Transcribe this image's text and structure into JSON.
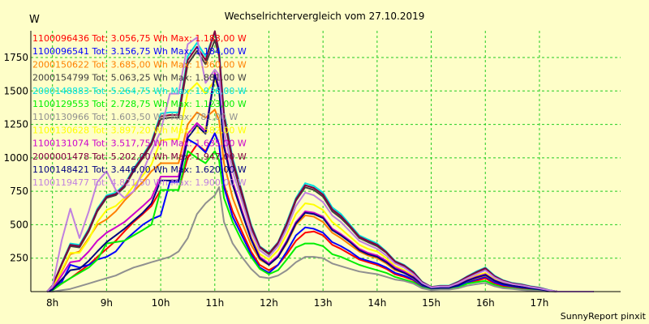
{
  "chart_data": {
    "type": "line",
    "title": "Wechselrichtervergleich vom 27.10.2019",
    "ylabel": "W",
    "credit": "SunnyReport pinxit",
    "ylim": [
      0,
      1950
    ],
    "xlim": [
      7.6,
      18.5
    ],
    "yticks": [
      250,
      500,
      750,
      1000,
      1250,
      1500,
      1750
    ],
    "xticks": [
      {
        "value": 8,
        "label": "8h"
      },
      {
        "value": 9,
        "label": "9h"
      },
      {
        "value": 10,
        "label": "10h"
      },
      {
        "value": 11,
        "label": "11h"
      },
      {
        "value": 12,
        "label": "12h"
      },
      {
        "value": 13,
        "label": "13h"
      },
      {
        "value": 14,
        "label": "14h"
      },
      {
        "value": 15,
        "label": "15h"
      },
      {
        "value": 16,
        "label": "16h"
      },
      {
        "value": 17,
        "label": "17h"
      }
    ],
    "grid": true,
    "legend_position": "top-left",
    "x": [
      7.9,
      8.0,
      8.17,
      8.33,
      8.5,
      8.67,
      8.83,
      9.0,
      9.17,
      9.33,
      9.5,
      9.67,
      9.83,
      10.0,
      10.17,
      10.33,
      10.5,
      10.67,
      10.83,
      11.0,
      11.08,
      11.17,
      11.33,
      11.5,
      11.67,
      11.83,
      12.0,
      12.17,
      12.33,
      12.5,
      12.67,
      12.83,
      13.0,
      13.17,
      13.33,
      13.5,
      13.67,
      13.83,
      14.0,
      14.17,
      14.33,
      14.5,
      14.67,
      14.83,
      15.0,
      15.17,
      15.33,
      15.5,
      15.67,
      15.83,
      16.0,
      16.17,
      16.33,
      16.5,
      16.67,
      16.83,
      17.0,
      17.17,
      17.33,
      17.5,
      17.67,
      17.83,
      18.0
    ],
    "series": [
      {
        "name": "1100096436 Tot: 3.056,75 Wh Max: 1.183,00 W",
        "color": "#ff0000",
        "values": [
          0,
          10,
          60,
          100,
          150,
          200,
          260,
          320,
          380,
          450,
          520,
          580,
          640,
          760,
          760,
          760,
          1000,
          1100,
          1050,
          1183,
          1100,
          800,
          600,
          450,
          300,
          200,
          160,
          200,
          280,
          380,
          440,
          450,
          420,
          350,
          320,
          280,
          240,
          220,
          200,
          170,
          130,
          110,
          85,
          40,
          20,
          25,
          25,
          40,
          70,
          80,
          100,
          60,
          40,
          30,
          20,
          15,
          10,
          5,
          0,
          0,
          0,
          0,
          0
        ]
      },
      {
        "name": "1100096541 Tot: 3.156,75 Wh Max: 1.184,00 W",
        "color": "#0000ff",
        "values": [
          0,
          10,
          70,
          200,
          180,
          200,
          240,
          260,
          300,
          380,
          440,
          500,
          540,
          570,
          820,
          820,
          1140,
          1100,
          1040,
          1184,
          1100,
          780,
          560,
          420,
          280,
          180,
          140,
          200,
          300,
          420,
          480,
          470,
          440,
          370,
          340,
          300,
          250,
          230,
          210,
          180,
          140,
          120,
          90,
          45,
          20,
          25,
          25,
          40,
          70,
          90,
          110,
          70,
          50,
          40,
          30,
          25,
          20,
          10,
          0,
          0,
          0,
          0,
          0
        ]
      },
      {
        "name": "2000150622 Tot: 3.685,00 Wh Max: 1.360,00 W",
        "color": "#ff8000",
        "values": [
          0,
          30,
          150,
          280,
          300,
          400,
          500,
          540,
          600,
          680,
          750,
          820,
          900,
          960,
          960,
          960,
          1250,
          1340,
          1300,
          1360,
          1280,
          960,
          700,
          520,
          350,
          240,
          200,
          260,
          360,
          500,
          570,
          560,
          520,
          440,
          400,
          350,
          300,
          270,
          250,
          210,
          160,
          140,
          100,
          50,
          25,
          30,
          30,
          50,
          80,
          100,
          120,
          80,
          60,
          45,
          35,
          25,
          20,
          10,
          0,
          0,
          0,
          0,
          0
        ]
      },
      {
        "name": "2000154799 Tot: 5.063,25 Wh Max: 1.881,00 W",
        "color": "#404040",
        "values": [
          0,
          40,
          200,
          340,
          330,
          450,
          600,
          700,
          720,
          780,
          900,
          1000,
          1100,
          1290,
          1300,
          1300,
          1700,
          1800,
          1700,
          1881,
          1760,
          1300,
          960,
          720,
          480,
          330,
          280,
          360,
          500,
          680,
          780,
          760,
          710,
          600,
          550,
          480,
          400,
          370,
          340,
          290,
          220,
          190,
          140,
          70,
          35,
          40,
          40,
          70,
          110,
          140,
          170,
          110,
          80,
          60,
          50,
          35,
          25,
          10,
          0,
          0,
          0,
          0,
          0
        ]
      },
      {
        "name": "2000148883 Tot: 5.264,75 Wh Max: 1.936,00 W",
        "color": "#00e0e0",
        "values": [
          0,
          45,
          210,
          360,
          350,
          470,
          620,
          720,
          740,
          800,
          920,
          1020,
          1120,
          1330,
          1340,
          1340,
          1760,
          1860,
          1760,
          1936,
          1800,
          1340,
          1000,
          750,
          500,
          340,
          290,
          370,
          520,
          700,
          810,
          790,
          740,
          630,
          580,
          500,
          420,
          390,
          360,
          300,
          230,
          200,
          150,
          75,
          35,
          45,
          45,
          75,
          115,
          150,
          180,
          120,
          85,
          65,
          55,
          40,
          30,
          12,
          0,
          0,
          0,
          0,
          0
        ]
      },
      {
        "name": "1100129553 Tot: 2.728,75 Wh Max: 1.123,00 W",
        "color": "#00ee00",
        "values": [
          0,
          10,
          60,
          100,
          140,
          180,
          240,
          360,
          370,
          380,
          420,
          460,
          500,
          760,
          760,
          760,
          1050,
          1000,
          960,
          1050,
          980,
          700,
          520,
          380,
          260,
          170,
          130,
          160,
          240,
          330,
          360,
          360,
          340,
          280,
          260,
          230,
          200,
          180,
          160,
          140,
          110,
          90,
          70,
          30,
          15,
          20,
          20,
          30,
          60,
          70,
          80,
          50,
          30,
          25,
          15,
          10,
          8,
          4,
          0,
          0,
          0,
          0,
          0
        ]
      },
      {
        "name": "1100130966 Tot: 1.603,50 Wh Max: 781,00 W",
        "color": "#909090",
        "values": [
          0,
          0,
          10,
          20,
          40,
          60,
          80,
          100,
          120,
          150,
          180,
          200,
          220,
          240,
          260,
          300,
          400,
          580,
          660,
          720,
          781,
          520,
          360,
          260,
          170,
          110,
          100,
          120,
          160,
          220,
          260,
          260,
          250,
          210,
          190,
          170,
          150,
          140,
          130,
          110,
          90,
          80,
          60,
          25,
          10,
          15,
          15,
          25,
          45,
          55,
          65,
          40,
          25,
          20,
          12,
          8,
          5,
          2,
          0,
          0,
          0,
          0,
          0
        ]
      },
      {
        "name": "1100130628 Tot: 3.897,20 Wh Max: 1.582,00 W",
        "color": "#ffff00",
        "values": [
          0,
          30,
          160,
          290,
          290,
          390,
          520,
          610,
          640,
          700,
          790,
          870,
          950,
          1130,
          1140,
          1140,
          1490,
          1560,
          1480,
          1582,
          1520,
          1100,
          810,
          610,
          410,
          280,
          240,
          310,
          430,
          580,
          660,
          650,
          610,
          520,
          470,
          410,
          350,
          320,
          300,
          250,
          190,
          160,
          120,
          60,
          30,
          35,
          35,
          60,
          95,
          120,
          140,
          90,
          65,
          50,
          40,
          30,
          20,
          8,
          0,
          0,
          0,
          0,
          0
        ]
      },
      {
        "name": "1100131074 Tot: 3.517,75 Wh Max: 1.635,00 W",
        "color": "#cc00cc",
        "values": [
          0,
          20,
          120,
          220,
          230,
          300,
          380,
          440,
          480,
          520,
          580,
          640,
          700,
          860,
          860,
          860,
          1180,
          1260,
          1200,
          1635,
          1520,
          1100,
          820,
          610,
          400,
          260,
          210,
          270,
          380,
          520,
          600,
          590,
          560,
          470,
          430,
          380,
          320,
          290,
          270,
          230,
          180,
          150,
          110,
          55,
          25,
          30,
          30,
          50,
          85,
          110,
          130,
          85,
          60,
          45,
          35,
          25,
          18,
          8,
          0,
          0,
          0,
          0,
          0
        ]
      },
      {
        "name": "2000001478 Tot: 5.202,00 Wh Max: 1.947,00 W",
        "color": "#800040",
        "values": [
          0,
          45,
          205,
          350,
          340,
          460,
          610,
          710,
          730,
          790,
          910,
          1010,
          1110,
          1310,
          1320,
          1320,
          1730,
          1830,
          1730,
          1947,
          1780,
          1320,
          980,
          740,
          490,
          335,
          285,
          365,
          510,
          690,
          795,
          775,
          725,
          615,
          565,
          490,
          410,
          380,
          350,
          295,
          225,
          195,
          145,
          72,
          35,
          42,
          42,
          72,
          112,
          145,
          175,
          115,
          82,
          62,
          52,
          38,
          28,
          11,
          0,
          0,
          0,
          0,
          0
        ]
      },
      {
        "name": "1100148421 Tot: 3.446,00 Wh Max: 1.620,00 W",
        "color": "#000080",
        "values": [
          0,
          15,
          90,
          160,
          170,
          230,
          300,
          370,
          420,
          470,
          530,
          590,
          660,
          830,
          830,
          830,
          1150,
          1240,
          1180,
          1620,
          1500,
          1080,
          800,
          590,
          390,
          250,
          200,
          260,
          370,
          510,
          590,
          580,
          550,
          460,
          420,
          370,
          310,
          280,
          260,
          220,
          170,
          140,
          105,
          52,
          24,
          28,
          28,
          48,
          82,
          105,
          125,
          82,
          58,
          44,
          34,
          24,
          17,
          7,
          0,
          0,
          0,
          0,
          0
        ]
      },
      {
        "name": "1100119477 Tot: 4.821,50 Wh Max: 1.900,00 W",
        "color": "#c080e0",
        "values": [
          0,
          40,
          380,
          620,
          400,
          600,
          820,
          900,
          760,
          700,
          750,
          900,
          1050,
          1200,
          1480,
          1480,
          1850,
          1900,
          1560,
          1660,
          1620,
          1200,
          900,
          680,
          450,
          310,
          260,
          340,
          470,
          640,
          740,
          720,
          670,
          570,
          520,
          450,
          380,
          350,
          320,
          270,
          210,
          180,
          130,
          65,
          32,
          38,
          38,
          65,
          100,
          130,
          160,
          105,
          75,
          57,
          47,
          34,
          24,
          10,
          0,
          0,
          0,
          0,
          0
        ]
      }
    ]
  }
}
